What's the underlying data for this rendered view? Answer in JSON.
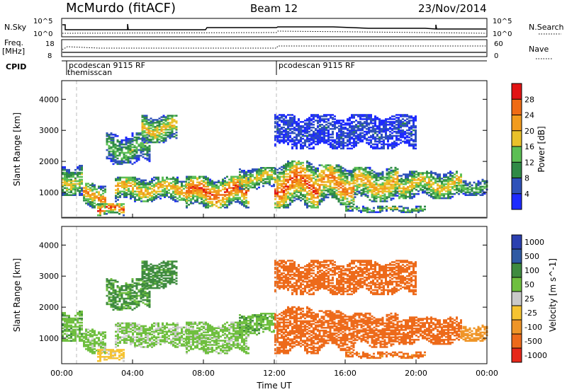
{
  "header": {
    "station": "McMurdo (fitACF)",
    "beam": "Beam 12",
    "date": "23/Nov/2014"
  },
  "chart_data": {
    "type": "heatmap",
    "xlabel": "Time UT",
    "x_ticks": [
      "00:00",
      "04:00",
      "08:00",
      "12:00",
      "16:00",
      "20:00",
      "00:00"
    ],
    "xlim_hours": [
      0,
      24
    ],
    "ylabel": "Slant Range [km]",
    "y_ticks": [
      1000,
      2000,
      3000,
      4000
    ],
    "ylim_km": [
      180,
      4600
    ],
    "top_panel": {
      "left_label": "N.Sky",
      "left_ticks": [
        "10^5",
        "10^0"
      ],
      "right_label": "N.Search",
      "right_ticks": [
        "10^5",
        "10^0"
      ]
    },
    "freq_panel": {
      "left_label": "Freq.",
      "left_unit": "[MHz]",
      "left_ticks": [
        18,
        8
      ],
      "right_label": "Nave",
      "right_ticks": [
        60,
        0
      ]
    },
    "cpid": {
      "label": "CPID",
      "entries": [
        {
          "text": "pcodescan 9115 RF",
          "hour": 0.0
        },
        {
          "text": "themisscan",
          "hour": 0.0
        },
        {
          "text": "pcodescan 9115 RF",
          "hour": 12.0
        }
      ]
    },
    "power_colorbar": {
      "label": "Power [dB]",
      "ticks": [
        4,
        8,
        12,
        16,
        20,
        24,
        28
      ],
      "colors": [
        "#1e2bff",
        "#2f52b9",
        "#2f8a46",
        "#5cbf54",
        "#e9c12a",
        "#f29b1d",
        "#ef6b14",
        "#e21414"
      ]
    },
    "velocity_colorbar": {
      "label": "Velocity [m s^-1]",
      "ticks": [
        "1000",
        "500",
        "100",
        "50",
        "25",
        "-25",
        "-100",
        "-500",
        "-1000"
      ],
      "colors": [
        "#2b40b0",
        "#2f5aa3",
        "#3f8b3f",
        "#6fbf3f",
        "#c9c9c9",
        "#f5c332",
        "#ef9528",
        "#ed6a1a",
        "#e6281a"
      ]
    },
    "echo_bands": [
      {
        "start_h": 0.0,
        "end_h": 1.2,
        "range_lo": 900,
        "range_hi": 1900,
        "power": 18,
        "velocity": 80
      },
      {
        "start_h": 1.2,
        "end_h": 2.5,
        "range_lo": 500,
        "range_hi": 1300,
        "power": 24,
        "velocity": 70
      },
      {
        "start_h": 2.0,
        "end_h": 3.5,
        "range_lo": 250,
        "range_hi": 650,
        "power": 30,
        "velocity": 20
      },
      {
        "start_h": 2.5,
        "end_h": 5.0,
        "range_lo": 1900,
        "range_hi": 2900,
        "power": 14,
        "velocity": 120
      },
      {
        "start_h": 4.5,
        "end_h": 6.5,
        "range_lo": 2600,
        "range_hi": 3500,
        "power": 20,
        "velocity": 150
      },
      {
        "start_h": 3.0,
        "end_h": 7.0,
        "range_lo": 700,
        "range_hi": 1500,
        "power": 22,
        "velocity": 60
      },
      {
        "start_h": 7.0,
        "end_h": 10.5,
        "range_lo": 500,
        "range_hi": 1500,
        "power": 28,
        "velocity": 70
      },
      {
        "start_h": 10.0,
        "end_h": 12.0,
        "range_lo": 1100,
        "range_hi": 1800,
        "power": 20,
        "velocity": 80
      },
      {
        "start_h": 12.0,
        "end_h": 14.5,
        "range_lo": 500,
        "range_hi": 2000,
        "power": 28,
        "velocity": -300
      },
      {
        "start_h": 14.5,
        "end_h": 16.5,
        "range_lo": 600,
        "range_hi": 1900,
        "power": 25,
        "velocity": -350
      },
      {
        "start_h": 16.5,
        "end_h": 19.0,
        "range_lo": 700,
        "range_hi": 1800,
        "power": 22,
        "velocity": -300
      },
      {
        "start_h": 16.0,
        "end_h": 20.5,
        "range_lo": 350,
        "range_hi": 550,
        "power": 16,
        "velocity": -150
      },
      {
        "start_h": 19.0,
        "end_h": 22.5,
        "range_lo": 800,
        "range_hi": 1700,
        "power": 20,
        "velocity": -250
      },
      {
        "start_h": 22.5,
        "end_h": 24.0,
        "range_lo": 900,
        "range_hi": 1400,
        "power": 14,
        "velocity": -60
      },
      {
        "start_h": 12.0,
        "end_h": 20.0,
        "range_lo": 2400,
        "range_hi": 3500,
        "power": 6,
        "velocity": -200
      }
    ]
  }
}
